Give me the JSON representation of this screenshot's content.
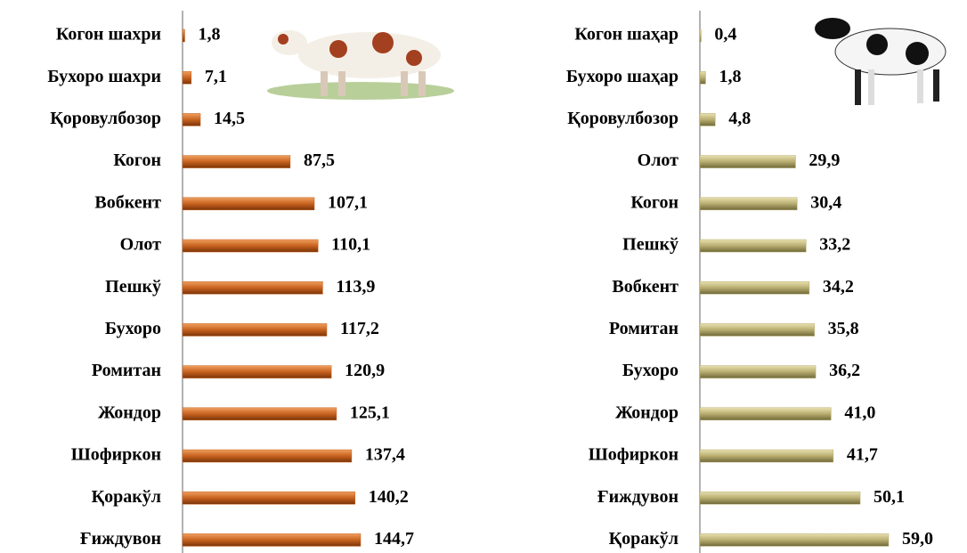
{
  "chart_data": [
    {
      "type": "bar",
      "color": "#c8621f",
      "categories": [
        "Когон шахри",
        "Бухоро шахри",
        "Қоровулбозор",
        "Когон",
        "Вобкент",
        "Олот",
        "Пешкў",
        "Бухоро",
        "Ромитан",
        "Жондор",
        "Шофиркон",
        "Қоракўл",
        "Ғиждувон"
      ],
      "values": [
        1.8,
        7.1,
        14.5,
        87.5,
        107.1,
        110.1,
        113.9,
        117.2,
        120.9,
        125.1,
        137.4,
        140.2,
        144.7
      ],
      "value_labels": [
        "1,8",
        "7,1",
        "14,5",
        "87,5",
        "107,1",
        "110,1",
        "113,9",
        "117,2",
        "120,9",
        "125,1",
        "137,4",
        "140,2",
        "144,7"
      ]
    },
    {
      "type": "bar",
      "color": "#b8ad70",
      "categories": [
        "Когон шаҳар",
        "Бухоро шаҳар",
        "Қоровулбозор",
        "Олот",
        "Когон",
        "Пешкў",
        "Вобкент",
        "Ромитан",
        "Бухоро",
        "Жондор",
        "Шофиркон",
        "Ғиждувон",
        "Қоракўл"
      ],
      "values": [
        0.4,
        1.8,
        4.8,
        29.9,
        30.4,
        33.2,
        34.2,
        35.8,
        36.2,
        41.0,
        41.7,
        50.1,
        59.0
      ],
      "value_labels": [
        "0,4",
        "1,8",
        "4,8",
        "29,9",
        "30,4",
        "33,2",
        "34,2",
        "35,8",
        "36,2",
        "41,0",
        "41,7",
        "50,1",
        "59,0"
      ]
    }
  ]
}
